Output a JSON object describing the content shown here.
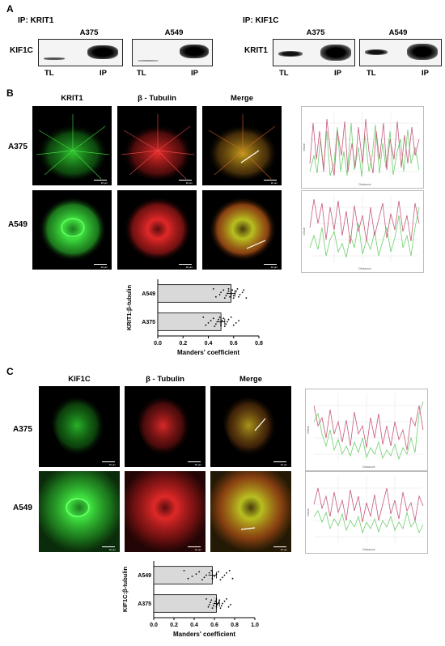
{
  "panels": {
    "A": {
      "letter": "A",
      "left": {
        "ip_title": "IP: KRIT1",
        "blot_label": "KIF1C",
        "cell_lines": [
          "A375",
          "A549"
        ],
        "lanes": [
          "TL",
          "IP",
          "TL",
          "IP"
        ]
      },
      "right": {
        "ip_title": "IP: KIF1C",
        "blot_label": "KRIT1",
        "cell_lines": [
          "A375",
          "A549"
        ],
        "lanes": [
          "TL",
          "IP",
          "TL",
          "IP"
        ]
      }
    },
    "B": {
      "letter": "B",
      "channels": [
        "KRIT1",
        "β - Tubulin",
        "Merge"
      ],
      "rows": [
        "A375",
        "A549"
      ],
      "scale_label": "10 µm",
      "profile_xlabel": "Distance",
      "profile_ylabel": "Value"
    },
    "C": {
      "letter": "C",
      "channels": [
        "KIF1C",
        "β - Tubulin",
        "Merge"
      ],
      "rows": [
        "A375",
        "A549"
      ],
      "scale_label": "10 µm",
      "profile_xlabel": "Distance",
      "profile_ylabel": "Value"
    }
  },
  "colors": {
    "green_channel": "#2fd12f",
    "red_channel": "#e02222",
    "profile_green": "#6fcf6f",
    "profile_red": "#c65a7a",
    "bar_fill": "#d9d9d9"
  },
  "chart_data": [
    {
      "type": "bar",
      "orientation": "horizontal",
      "panel": "B",
      "categories": [
        "A549",
        "A375"
      ],
      "values": [
        0.58,
        0.5
      ],
      "errors": [
        0.03,
        0.03
      ],
      "xlabel": "Manders' coefficient",
      "ylabel": "KRIT1:β-tubulin",
      "xlim": [
        0,
        0.8
      ],
      "xticks": [
        "0.0",
        "0.2",
        "0.4",
        "0.6",
        "0.8"
      ],
      "points": {
        "A549": [
          0.44,
          0.46,
          0.49,
          0.5,
          0.52,
          0.53,
          0.54,
          0.55,
          0.56,
          0.56,
          0.57,
          0.58,
          0.58,
          0.59,
          0.6,
          0.6,
          0.61,
          0.62,
          0.63,
          0.64,
          0.65,
          0.67,
          0.68,
          0.7
        ],
        "A375": [
          0.36,
          0.38,
          0.4,
          0.42,
          0.44,
          0.45,
          0.46,
          0.47,
          0.48,
          0.49,
          0.5,
          0.5,
          0.51,
          0.52,
          0.53,
          0.54,
          0.55,
          0.56,
          0.58,
          0.6,
          0.62,
          0.64
        ]
      }
    },
    {
      "type": "bar",
      "orientation": "horizontal",
      "panel": "C",
      "categories": [
        "A549",
        "A375"
      ],
      "values": [
        0.58,
        0.62
      ],
      "errors": [
        0.04,
        0.03
      ],
      "xlabel": "Manders' coefficient",
      "ylabel": "KIF1C:β-tubulin",
      "xlim": [
        0,
        1.0
      ],
      "xticks": [
        "0.0",
        "0.2",
        "0.4",
        "0.6",
        "0.8",
        "1.0"
      ],
      "points": {
        "A549": [
          0.3,
          0.34,
          0.38,
          0.42,
          0.45,
          0.48,
          0.5,
          0.52,
          0.55,
          0.57,
          0.58,
          0.6,
          0.62,
          0.64,
          0.66,
          0.68,
          0.7,
          0.72,
          0.75,
          0.78
        ],
        "A375": [
          0.52,
          0.54,
          0.55,
          0.56,
          0.57,
          0.58,
          0.59,
          0.6,
          0.61,
          0.62,
          0.62,
          0.63,
          0.64,
          0.65,
          0.66,
          0.67,
          0.68,
          0.7,
          0.72,
          0.74,
          0.76
        ]
      }
    }
  ]
}
